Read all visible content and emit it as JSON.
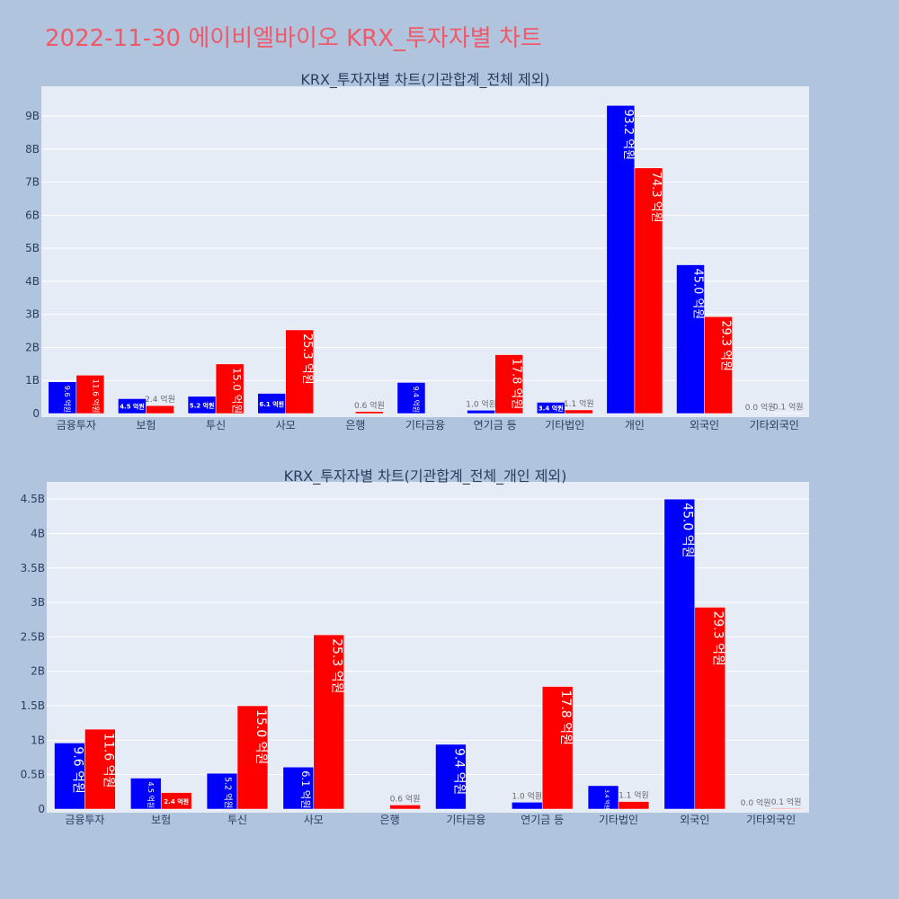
{
  "page_title": "2022-11-30 에이비엘바이오 KRX_투자자별 차트",
  "colors": {
    "series_a": "#0000ff",
    "series_b": "#ff0000",
    "plot_bg": "#e5ecf6",
    "page_bg": "#b0c4de",
    "title": "#ef5a6a"
  },
  "chart_data": [
    {
      "type": "bar",
      "title": "KRX_투자자별 차트(기관합계_전체 제외)",
      "categories": [
        "금융투자",
        "보험",
        "투신",
        "사모",
        "은행",
        "기타금융",
        "연기금 등",
        "기타법인",
        "개인",
        "외국인",
        "기타외국인"
      ],
      "series": [
        {
          "values": [
            0.96,
            0.45,
            0.52,
            0.61,
            0,
            0.94,
            0.1,
            0.34,
            9.32,
            4.5,
            0.0
          ],
          "labels": [
            "9.6 억원",
            "4.5 억원",
            "5.2 억원",
            "6.1 억원",
            "",
            "9.4 억원",
            "1.0 억원",
            "3.4 억원",
            "93.2 억원",
            "45.0 억원",
            "0.0 억원"
          ]
        },
        {
          "values": [
            1.16,
            0.24,
            1.5,
            2.53,
            0.06,
            0,
            1.78,
            0.11,
            7.43,
            2.93,
            0.01
          ],
          "labels": [
            "11.6 억원",
            "2.4 억원",
            "15.0 억원",
            "25.3 억원",
            "0.6 억원",
            "",
            "17.8 억원",
            "1.1 억원",
            "74.3 억원",
            "29.3 억원",
            "0.1 억원"
          ]
        }
      ],
      "yticks": [
        0,
        1,
        2,
        3,
        4,
        5,
        6,
        7,
        8,
        9
      ],
      "ytick_labels": [
        "0",
        "1B",
        "2B",
        "3B",
        "4B",
        "5B",
        "6B",
        "7B",
        "8B",
        "9B"
      ],
      "ylim": [
        0,
        9.9
      ],
      "grid": true
    },
    {
      "type": "bar",
      "title": "KRX_투자자별 차트(기관합계_전체_개인 제외)",
      "categories": [
        "금융투자",
        "보험",
        "투신",
        "사모",
        "은행",
        "기타금융",
        "연기금 등",
        "기타법인",
        "외국인",
        "기타외국인"
      ],
      "series": [
        {
          "values": [
            0.96,
            0.45,
            0.52,
            0.61,
            0,
            0.94,
            0.1,
            0.34,
            4.5,
            0.0
          ],
          "labels": [
            "9.6 억원",
            "4.5 억원",
            "5.2 억원",
            "6.1 억원",
            "",
            "9.4 억원",
            "1.0 억원",
            "3.4 억원",
            "45.0 억원",
            "0.0 억원"
          ]
        },
        {
          "values": [
            1.16,
            0.24,
            1.5,
            2.53,
            0.06,
            0,
            1.78,
            0.11,
            2.93,
            0.01
          ],
          "labels": [
            "11.6 억원",
            "2.4 억원",
            "15.0 억원",
            "25.3 억원",
            "0.6 억원",
            "",
            "17.8 억원",
            "1.1 억원",
            "29.3 억원",
            "0.1 억원"
          ]
        }
      ],
      "yticks": [
        0,
        0.5,
        1,
        1.5,
        2,
        2.5,
        3,
        3.5,
        4,
        4.5
      ],
      "ytick_labels": [
        "0",
        "0.5B",
        "1B",
        "1.5B",
        "2B",
        "2.5B",
        "3B",
        "3.5B",
        "4B",
        "4.5B"
      ],
      "ylim": [
        0,
        4.75
      ],
      "grid": true
    }
  ]
}
